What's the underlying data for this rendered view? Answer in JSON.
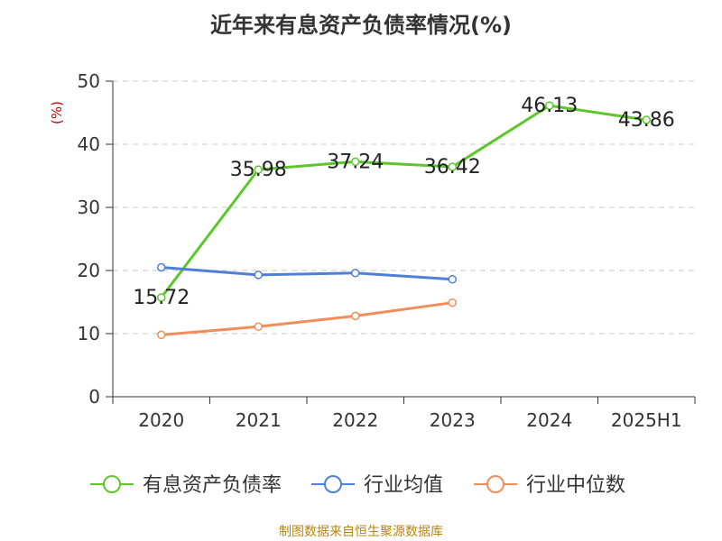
{
  "chart_data": {
    "type": "line",
    "title": "近年来有息资产负债率情况(%)",
    "ylabel": "(%)",
    "xlabel": "",
    "categories": [
      "2020",
      "2021",
      "2022",
      "2023",
      "2024",
      "2025H1"
    ],
    "ylim": [
      0,
      50
    ],
    "yticks": [
      0,
      10,
      20,
      30,
      40,
      50
    ],
    "grid": true,
    "legend": "bottom",
    "series": [
      {
        "name": "有息资产负债率",
        "color": "#5cc72a",
        "values": [
          15.72,
          35.98,
          37.24,
          36.42,
          46.13,
          43.86
        ],
        "labels": [
          "15.72",
          "35.98",
          "37.24",
          "36.42",
          "46.13",
          "43.86"
        ]
      },
      {
        "name": "行业均值",
        "color": "#4e7fd9",
        "values": [
          20.5,
          19.3,
          19.6,
          18.6,
          null,
          null
        ]
      },
      {
        "name": "行业中位数",
        "color": "#f28c5a",
        "values": [
          9.8,
          11.1,
          12.8,
          14.9,
          null,
          null
        ]
      }
    ]
  },
  "footer": "制图数据来自恒生聚源数据库"
}
